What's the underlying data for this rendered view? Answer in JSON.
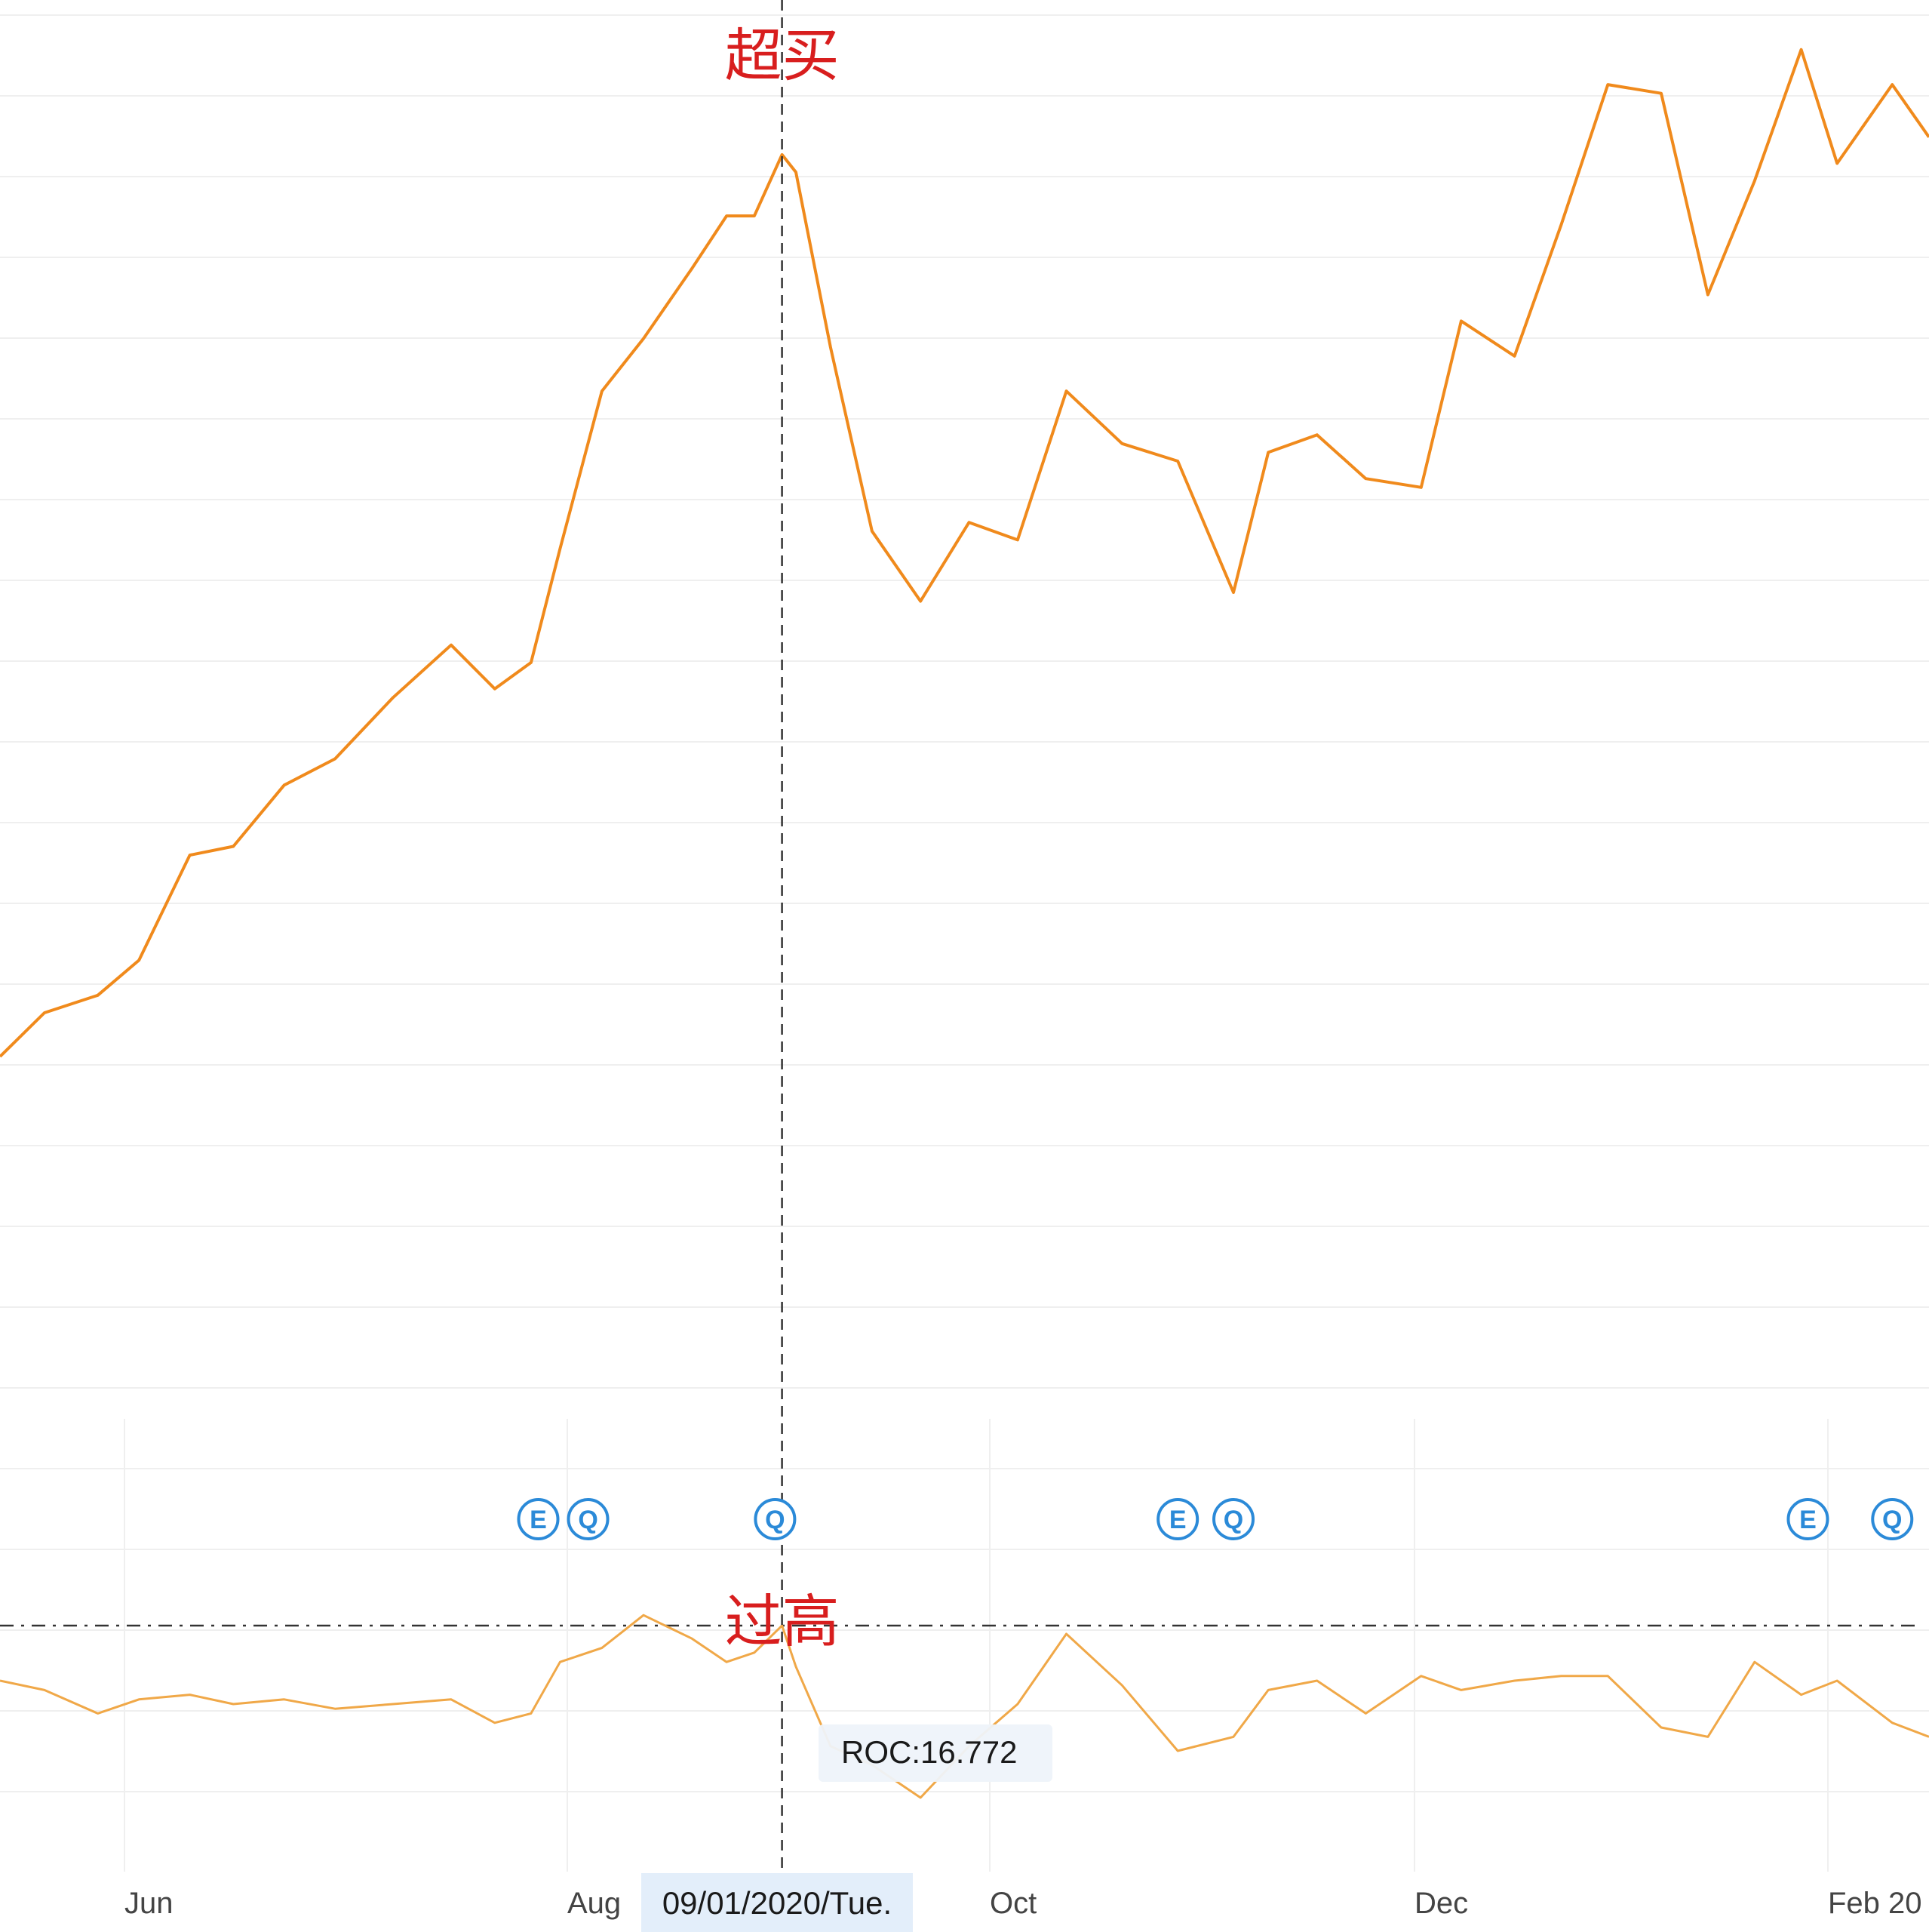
{
  "annotations": {
    "overbought": "超买",
    "too_high": "过高"
  },
  "crosshair_date": "09/01/2020/Tue.",
  "tooltip": {
    "label": "ROC:16.772"
  },
  "x_axis_labels": [
    "Jun",
    "Aug",
    "Oct",
    "Dec",
    "Feb 20"
  ],
  "event_markers": [
    {
      "letter": "E",
      "date": "2020-07-28"
    },
    {
      "letter": "Q",
      "date": "2020-08-04"
    },
    {
      "letter": "Q",
      "date": "2020-08-31"
    },
    {
      "letter": "E",
      "date": "2020-10-28"
    },
    {
      "letter": "Q",
      "date": "2020-11-05"
    },
    {
      "letter": "E",
      "date": "2021-01-29"
    },
    {
      "letter": "Q",
      "date": "2021-02-08"
    }
  ],
  "colors": {
    "price_line": "#f08a1c",
    "roc_line": "#f0a848",
    "annotation": "#d81e1e",
    "marker": "#2b8ad8",
    "grid": "#efefef",
    "date_box": "#e3eefa"
  },
  "chart_data": [
    {
      "type": "line",
      "name": "price",
      "x": [
        "2020-05-04",
        "2020-05-14",
        "2020-05-26",
        "2020-06-03",
        "2020-06-10",
        "2020-06-16",
        "2020-06-23",
        "2020-06-30",
        "2020-07-08",
        "2020-07-16",
        "2020-07-22",
        "2020-07-27",
        "2020-07-31",
        "2020-08-06",
        "2020-08-12",
        "2020-08-19",
        "2020-08-24",
        "2020-08-28",
        "2020-09-01",
        "2020-09-03",
        "2020-09-08",
        "2020-09-14",
        "2020-09-21",
        "2020-09-28",
        "2020-10-05",
        "2020-10-12",
        "2020-10-20",
        "2020-10-28",
        "2020-11-05",
        "2020-11-10",
        "2020-11-17",
        "2020-11-24",
        "2020-12-02",
        "2020-12-08",
        "2020-12-16",
        "2020-12-23",
        "2020-12-30",
        "2021-01-07",
        "2021-01-14",
        "2021-01-21",
        "2021-01-28",
        "2021-02-02",
        "2021-02-08",
        "2021-02-12"
      ],
      "values": [
        13,
        18,
        20,
        24,
        36,
        37,
        44,
        47,
        54,
        60,
        55,
        58,
        71,
        89,
        95,
        103,
        109,
        109,
        116,
        114,
        94,
        73,
        65,
        74,
        72,
        89,
        83,
        81,
        66,
        82,
        84,
        79,
        78,
        97,
        93,
        108,
        124,
        123,
        100,
        113,
        128,
        115,
        124,
        118
      ],
      "note": "relative price level, no y-axis scale shown"
    },
    {
      "type": "line",
      "name": "ROC",
      "x": [
        "2020-05-04",
        "2020-05-14",
        "2020-05-26",
        "2020-06-03",
        "2020-06-10",
        "2020-06-16",
        "2020-06-23",
        "2020-06-30",
        "2020-07-08",
        "2020-07-16",
        "2020-07-22",
        "2020-07-27",
        "2020-07-31",
        "2020-08-06",
        "2020-08-12",
        "2020-08-19",
        "2020-08-24",
        "2020-08-28",
        "2020-09-01",
        "2020-09-03",
        "2020-09-08",
        "2020-09-14",
        "2020-09-21",
        "2020-09-28",
        "2020-10-05",
        "2020-10-12",
        "2020-10-20",
        "2020-10-28",
        "2020-11-05",
        "2020-11-10",
        "2020-11-17",
        "2020-11-24",
        "2020-12-02",
        "2020-12-08",
        "2020-12-16",
        "2020-12-23",
        "2020-12-30",
        "2021-01-07",
        "2021-01-14",
        "2021-01-21",
        "2021-01-28",
        "2021-02-02",
        "2021-02-08",
        "2021-02-12"
      ],
      "values": [
        5,
        3,
        -2,
        1,
        2,
        0,
        1,
        -1,
        0,
        1,
        -4,
        -2,
        9,
        12,
        19,
        14,
        9,
        11,
        16.772,
        8,
        -9,
        -13,
        -20,
        -9,
        0,
        15,
        4,
        -10,
        -7,
        3,
        5,
        -2,
        6,
        3,
        5,
        6,
        6,
        -5,
        -7,
        9,
        2,
        5,
        -4,
        -7
      ],
      "highlight": {
        "date": "2020-09-01",
        "value": 16.772
      },
      "reference_line": 16.772
    }
  ]
}
